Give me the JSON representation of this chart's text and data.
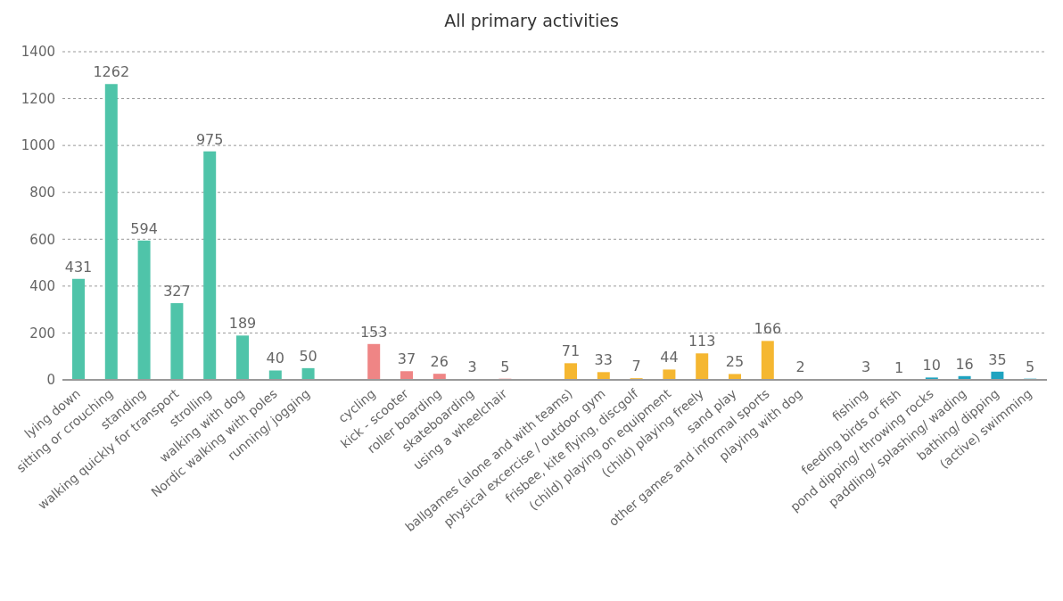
{
  "chart_data": {
    "type": "bar",
    "title": "All primary activities",
    "categories": [
      "lying down",
      "sitting or crouching",
      "standing",
      "walking quickly for transport",
      "strolling",
      "walking with dog",
      "Nordic walking with poles",
      "running/ jogging",
      null,
      "cycling",
      "kick - scooter",
      "roller boarding",
      "skateboarding",
      "using a wheelchair",
      null,
      "ballgames (alone and with teams)",
      "physical excercise / outdoor gym",
      "frisbee, kite flying, discgolf",
      "(child) playing on equipment",
      "(child) playing freely",
      "sand play",
      "other games and informal sports",
      "playing with dog",
      null,
      "fishing",
      "feeding birds or fish",
      "pond dipping/ throwing rocks",
      "paddling/ splashing/ wading",
      "bathing/ dipping",
      "(active) swimming"
    ],
    "values": [
      431,
      1262,
      594,
      327,
      975,
      189,
      40,
      50,
      null,
      153,
      37,
      26,
      3,
      5,
      null,
      71,
      33,
      7,
      44,
      113,
      25,
      166,
      2,
      null,
      3,
      1,
      10,
      16,
      35,
      5
    ],
    "colors": [
      "#4fc4a9",
      "#4fc4a9",
      "#4fc4a9",
      "#4fc4a9",
      "#4fc4a9",
      "#4fc4a9",
      "#4fc4a9",
      "#4fc4a9",
      null,
      "#ef8585",
      "#ef8585",
      "#ef8585",
      "#ef8585",
      "#ef8585",
      null,
      "#f5b731",
      "#f5b731",
      "#f5b731",
      "#f5b731",
      "#f5b731",
      "#f5b731",
      "#f5b731",
      "#f5b731",
      null,
      "#1fa3c0",
      "#1fa3c0",
      "#1fa3c0",
      "#1fa3c0",
      "#1fa3c0",
      "#1fa3c0"
    ],
    "ylim": [
      0,
      1400
    ],
    "yticks": [
      0,
      200,
      400,
      600,
      800,
      1000,
      1200,
      1400
    ],
    "grid": "y",
    "data_labels": true
  }
}
